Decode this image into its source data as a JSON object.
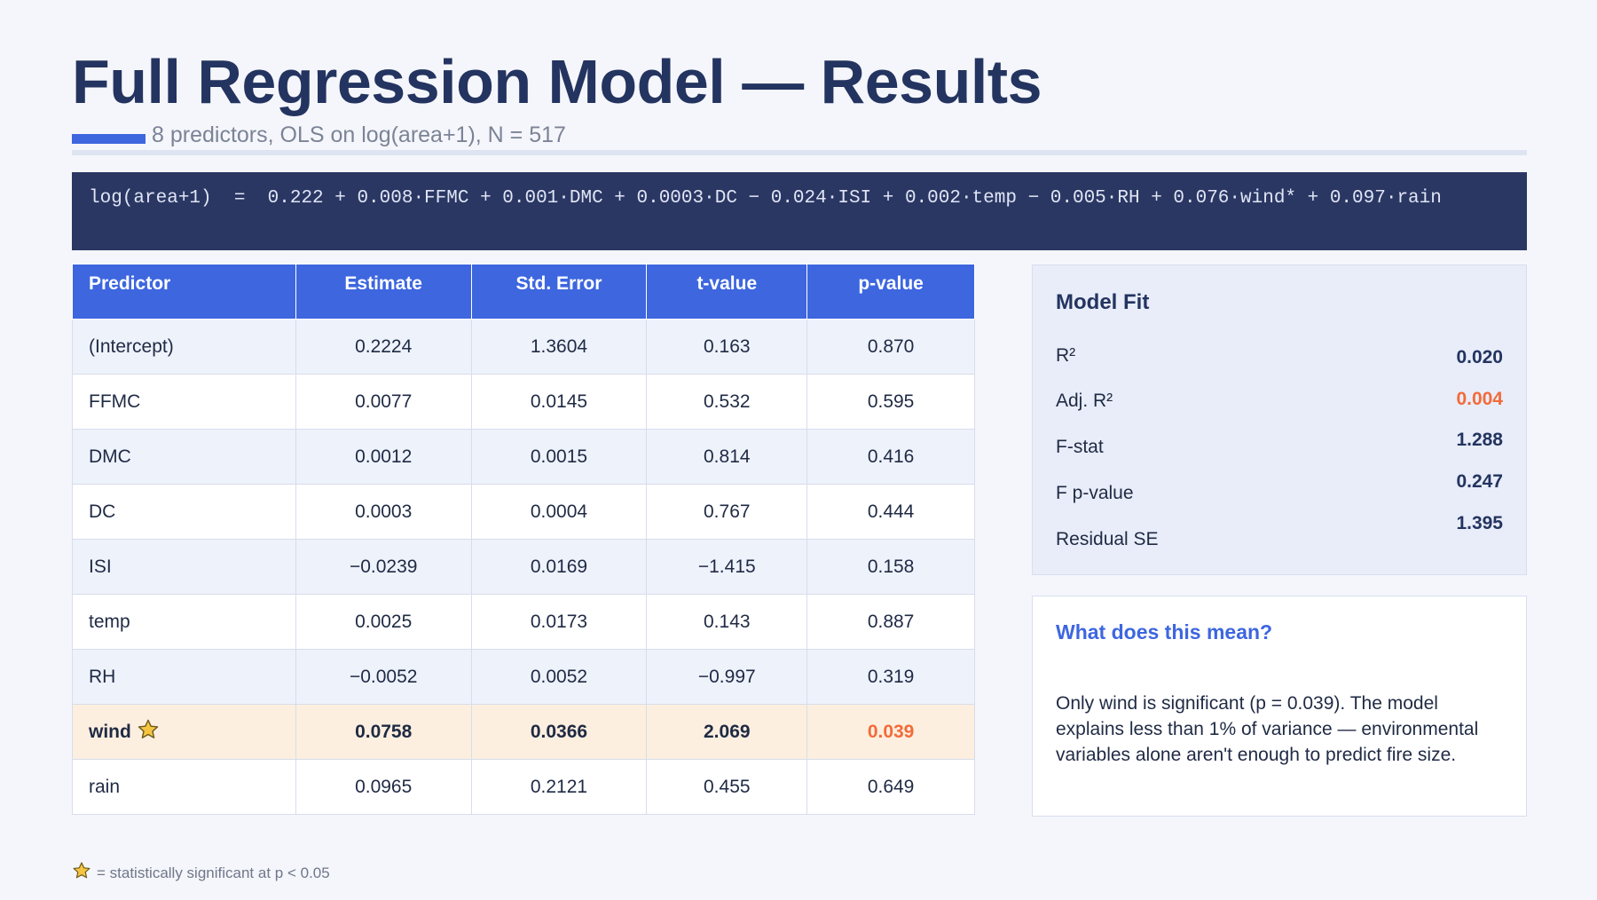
{
  "title": "Full Regression Model — Results",
  "subtitle": "8 predictors, OLS on log(area+1), N = 517",
  "equation": "log(area+1)  =  0.222 + 0.008·FFMC + 0.001·DMC + 0.0003·DC − 0.024·ISI + 0.002·temp − 0.005·RH + 0.076·wind* + 0.097·rain",
  "table": {
    "headers": [
      "Predictor",
      "Estimate",
      "Std. Error",
      "t-value",
      "p-value"
    ],
    "rows": [
      [
        "(Intercept)",
        "0.2224",
        "1.3604",
        "0.163",
        "0.870"
      ],
      [
        "FFMC",
        "0.0077",
        "0.0145",
        "0.532",
        "0.595"
      ],
      [
        "DMC",
        "0.0012",
        "0.0015",
        "0.814",
        "0.416"
      ],
      [
        "DC",
        "0.0003",
        "0.0004",
        "0.767",
        "0.444"
      ],
      [
        "ISI",
        "−0.0239",
        "0.0169",
        "−1.415",
        "0.158"
      ],
      [
        "temp",
        "0.0025",
        "0.0173",
        "0.143",
        "0.887"
      ],
      [
        "RH",
        "−0.0052",
        "0.0052",
        "−0.997",
        "0.319"
      ],
      [
        "wind",
        "0.0758",
        "0.0366",
        "2.069",
        "0.039"
      ],
      [
        "rain",
        "0.0965",
        "0.2121",
        "0.455",
        "0.649"
      ]
    ]
  },
  "model_fit": {
    "title": "Model Fit",
    "items": [
      {
        "label": "R²",
        "value": "0.020"
      },
      {
        "label": "Adj. R²",
        "value": "0.004"
      },
      {
        "label": "F-stat",
        "value": "1.288"
      },
      {
        "label": "F p-value",
        "value": "0.247"
      },
      {
        "label": "Residual SE",
        "value": "1.395"
      }
    ]
  },
  "meaning": {
    "title": "What does this mean?",
    "body": "Only wind is significant (p = 0.039). The model explains less than 1% of variance — environmental variables alone aren't enough to predict fire size."
  },
  "footnote": "= statistically significant at p < 0.05",
  "colors": {
    "accent": "#3d66df",
    "title": "#243460",
    "warning": "#f26b3a",
    "highlight_row": "#fdefdf",
    "star": "#f5c542"
  },
  "icons": {
    "significance": "star-icon"
  }
}
